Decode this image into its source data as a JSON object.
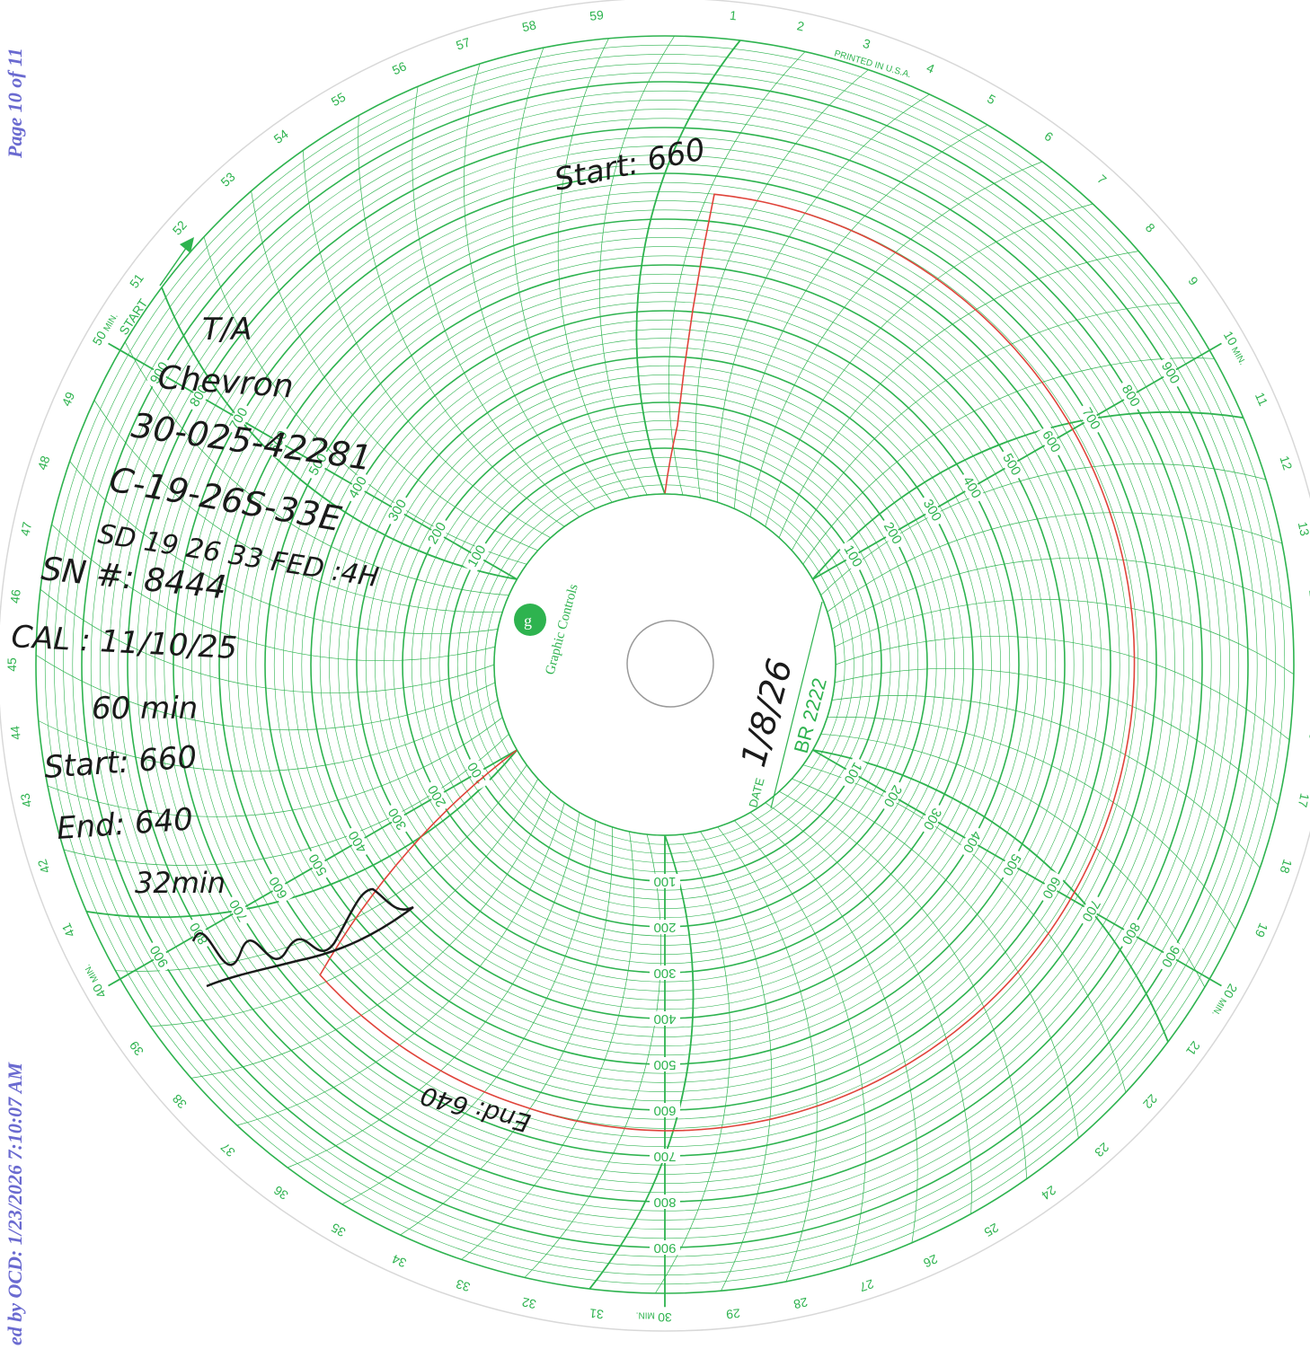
{
  "side": {
    "page": "Page 10 of 11",
    "received": "ed by OCD: 1/23/2026 7:10:07 AM"
  },
  "chart": {
    "brand": "Graphic Controls",
    "printed": "PRINTED IN U.S.A.",
    "start_label": "START",
    "date_label": "DATE",
    "chart_code": "BR 2222",
    "min_label": "MIN.",
    "minute_marks": [
      "10",
      "20",
      "30",
      "40",
      "50"
    ],
    "scale": [
      "100",
      "200",
      "300",
      "400",
      "500",
      "600",
      "700",
      "800",
      "900"
    ]
  },
  "notes": {
    "start_top": "Start: 660",
    "ta": "T/A",
    "operator": "Chevron",
    "api": "30-025-42281",
    "location": "C-19-26S-33E",
    "sd": "SD 19 26 33 FED :4H",
    "sn": "SN #: 8444",
    "cal": "CAL : 11/10/25",
    "duration": "60 min",
    "start": "Start: 660",
    "end": "End: 640",
    "elapsed": "32min",
    "end_bottom": "End: 640",
    "date_value": "1/8/26"
  },
  "chart_data": {
    "type": "line",
    "title": "",
    "x_unit": "minutes",
    "y_unit": "pressure",
    "range_minutes": [
      0,
      60
    ],
    "range_pressure": [
      0,
      1000
    ],
    "series": [
      {
        "x": [
          0,
          0.5,
          1,
          2,
          5,
          10,
          15,
          20,
          25,
          30,
          32,
          33,
          38,
          40
        ],
        "y": [
          0,
          150,
          660,
          660,
          658,
          655,
          652,
          650,
          648,
          645,
          642,
          640,
          640,
          0
        ]
      }
    ]
  },
  "colors": {
    "grid": "#2eb34f",
    "trace": "#e0433a",
    "ink": "#1a1a1a",
    "side_text": "#6a6ad0"
  }
}
